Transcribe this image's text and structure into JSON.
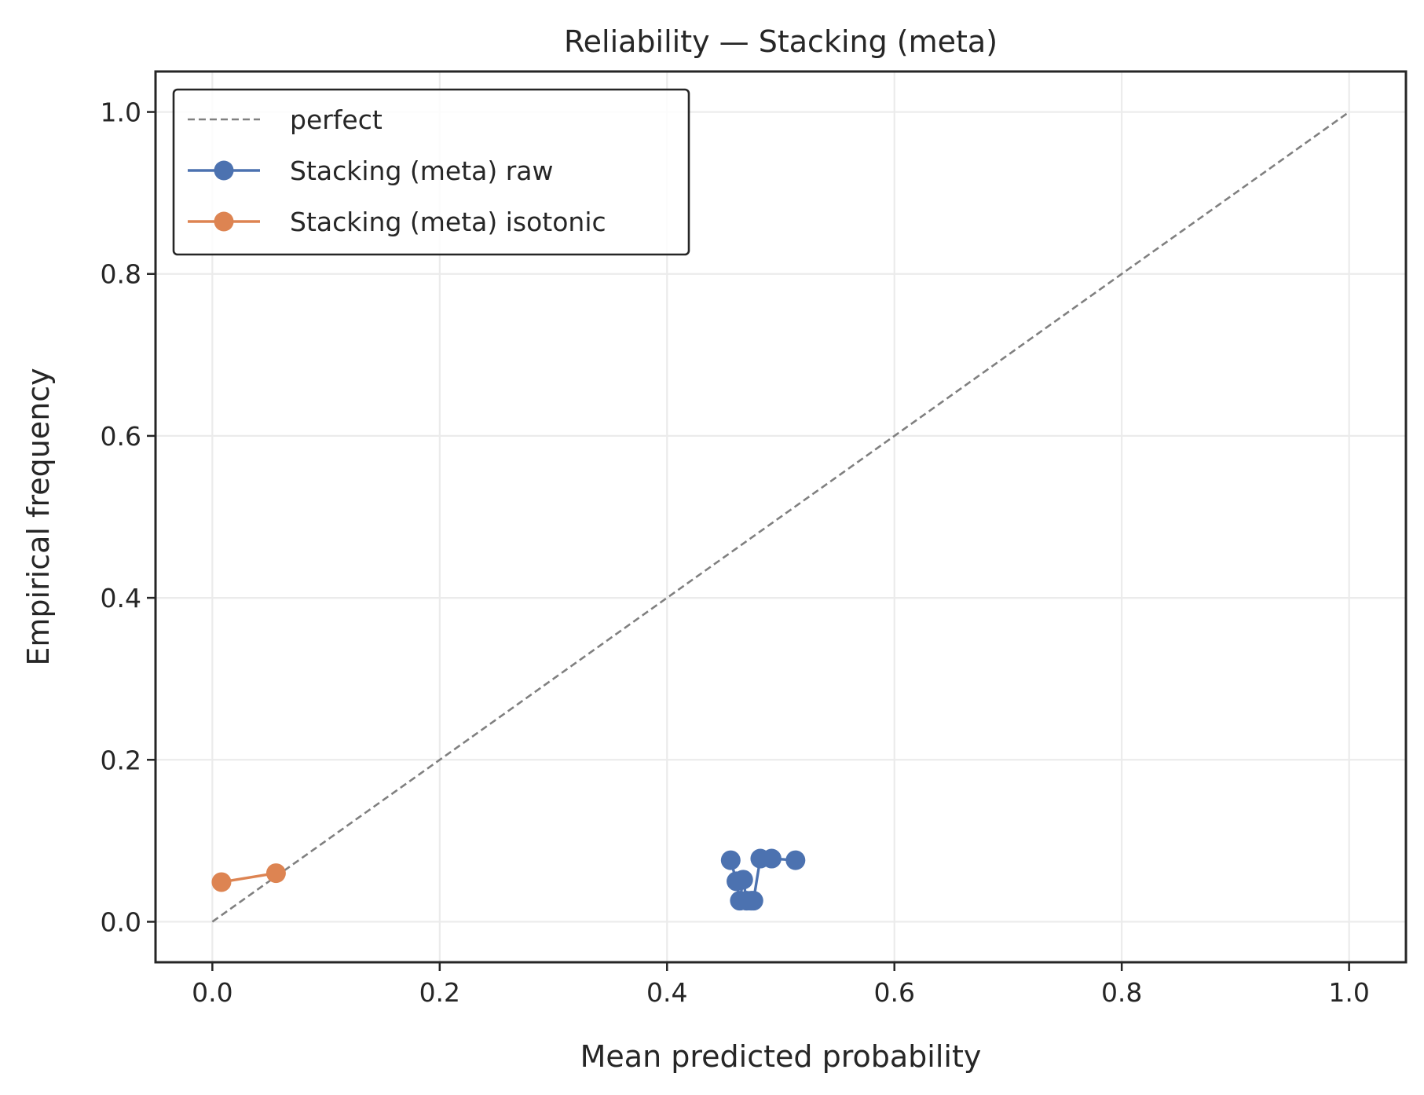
{
  "chart_data": {
    "type": "line",
    "title": "Reliability — Stacking (meta)",
    "xlabel": "Mean predicted probability",
    "ylabel": "Empirical frequency",
    "xlim": [
      -0.05,
      1.05
    ],
    "ylim": [
      -0.05,
      1.05
    ],
    "xticks": [
      0.0,
      0.2,
      0.4,
      0.6,
      0.8,
      1.0
    ],
    "xtick_labels": [
      "0.0",
      "0.2",
      "0.4",
      "0.6",
      "0.8",
      "1.0"
    ],
    "yticks": [
      0.0,
      0.2,
      0.4,
      0.6,
      0.8,
      1.0
    ],
    "ytick_labels": [
      "0.0",
      "0.2",
      "0.4",
      "0.6",
      "0.8",
      "1.0"
    ],
    "grid": true,
    "legend_position": "top-left",
    "series": [
      {
        "name": "perfect",
        "style": "dashed",
        "color": "#808080",
        "x": [
          0.0,
          1.0
        ],
        "y": [
          0.0,
          1.0
        ]
      },
      {
        "name": "Stacking (meta) raw",
        "style": "line-marker",
        "color": "#4c72b0",
        "x": [
          0.456,
          0.461,
          0.464,
          0.467,
          0.47,
          0.474,
          0.476,
          0.482,
          0.492,
          0.513
        ],
        "y": [
          0.076,
          0.05,
          0.026,
          0.052,
          0.026,
          0.026,
          0.026,
          0.078,
          0.078,
          0.076
        ]
      },
      {
        "name": "Stacking (meta) isotonic",
        "style": "line-marker",
        "color": "#dd8452",
        "x": [
          0.008,
          0.056
        ],
        "y": [
          0.049,
          0.06
        ]
      }
    ]
  }
}
